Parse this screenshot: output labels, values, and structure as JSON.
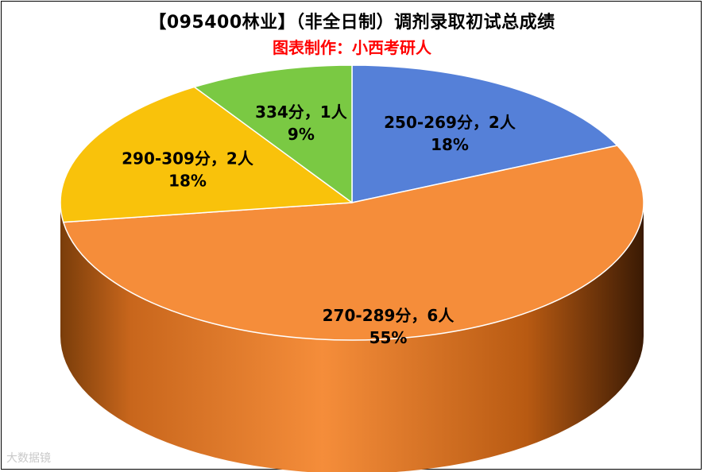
{
  "header": {
    "title": "【095400林业】（非全日制）调剂录取初试总成绩",
    "subtitle": "图表制作：小西考研人"
  },
  "watermark": "大数据镜",
  "colors": {
    "blue": "#5580d8",
    "orange": "#f58d3a",
    "yellow": "#f9c20b",
    "green": "#7ac943",
    "subtitle_red": "#ff0000"
  },
  "chart_data": {
    "type": "pie",
    "title": "【095400林业】（非全日制）调剂录取初试总成绩",
    "subtitle": "图表制作：小西考研人",
    "style": "3d",
    "slices": [
      {
        "label": "250-269分，2人",
        "value": 2,
        "percent": "18%",
        "color": "#5580d8"
      },
      {
        "label": "270-289分，6人",
        "value": 6,
        "percent": "55%",
        "color": "#f58d3a"
      },
      {
        "label": "290-309分，2人",
        "value": 2,
        "percent": "18%",
        "color": "#f9c20b"
      },
      {
        "label": "334分，1人",
        "value": 1,
        "percent": "9%",
        "color": "#7ac943"
      }
    ]
  }
}
